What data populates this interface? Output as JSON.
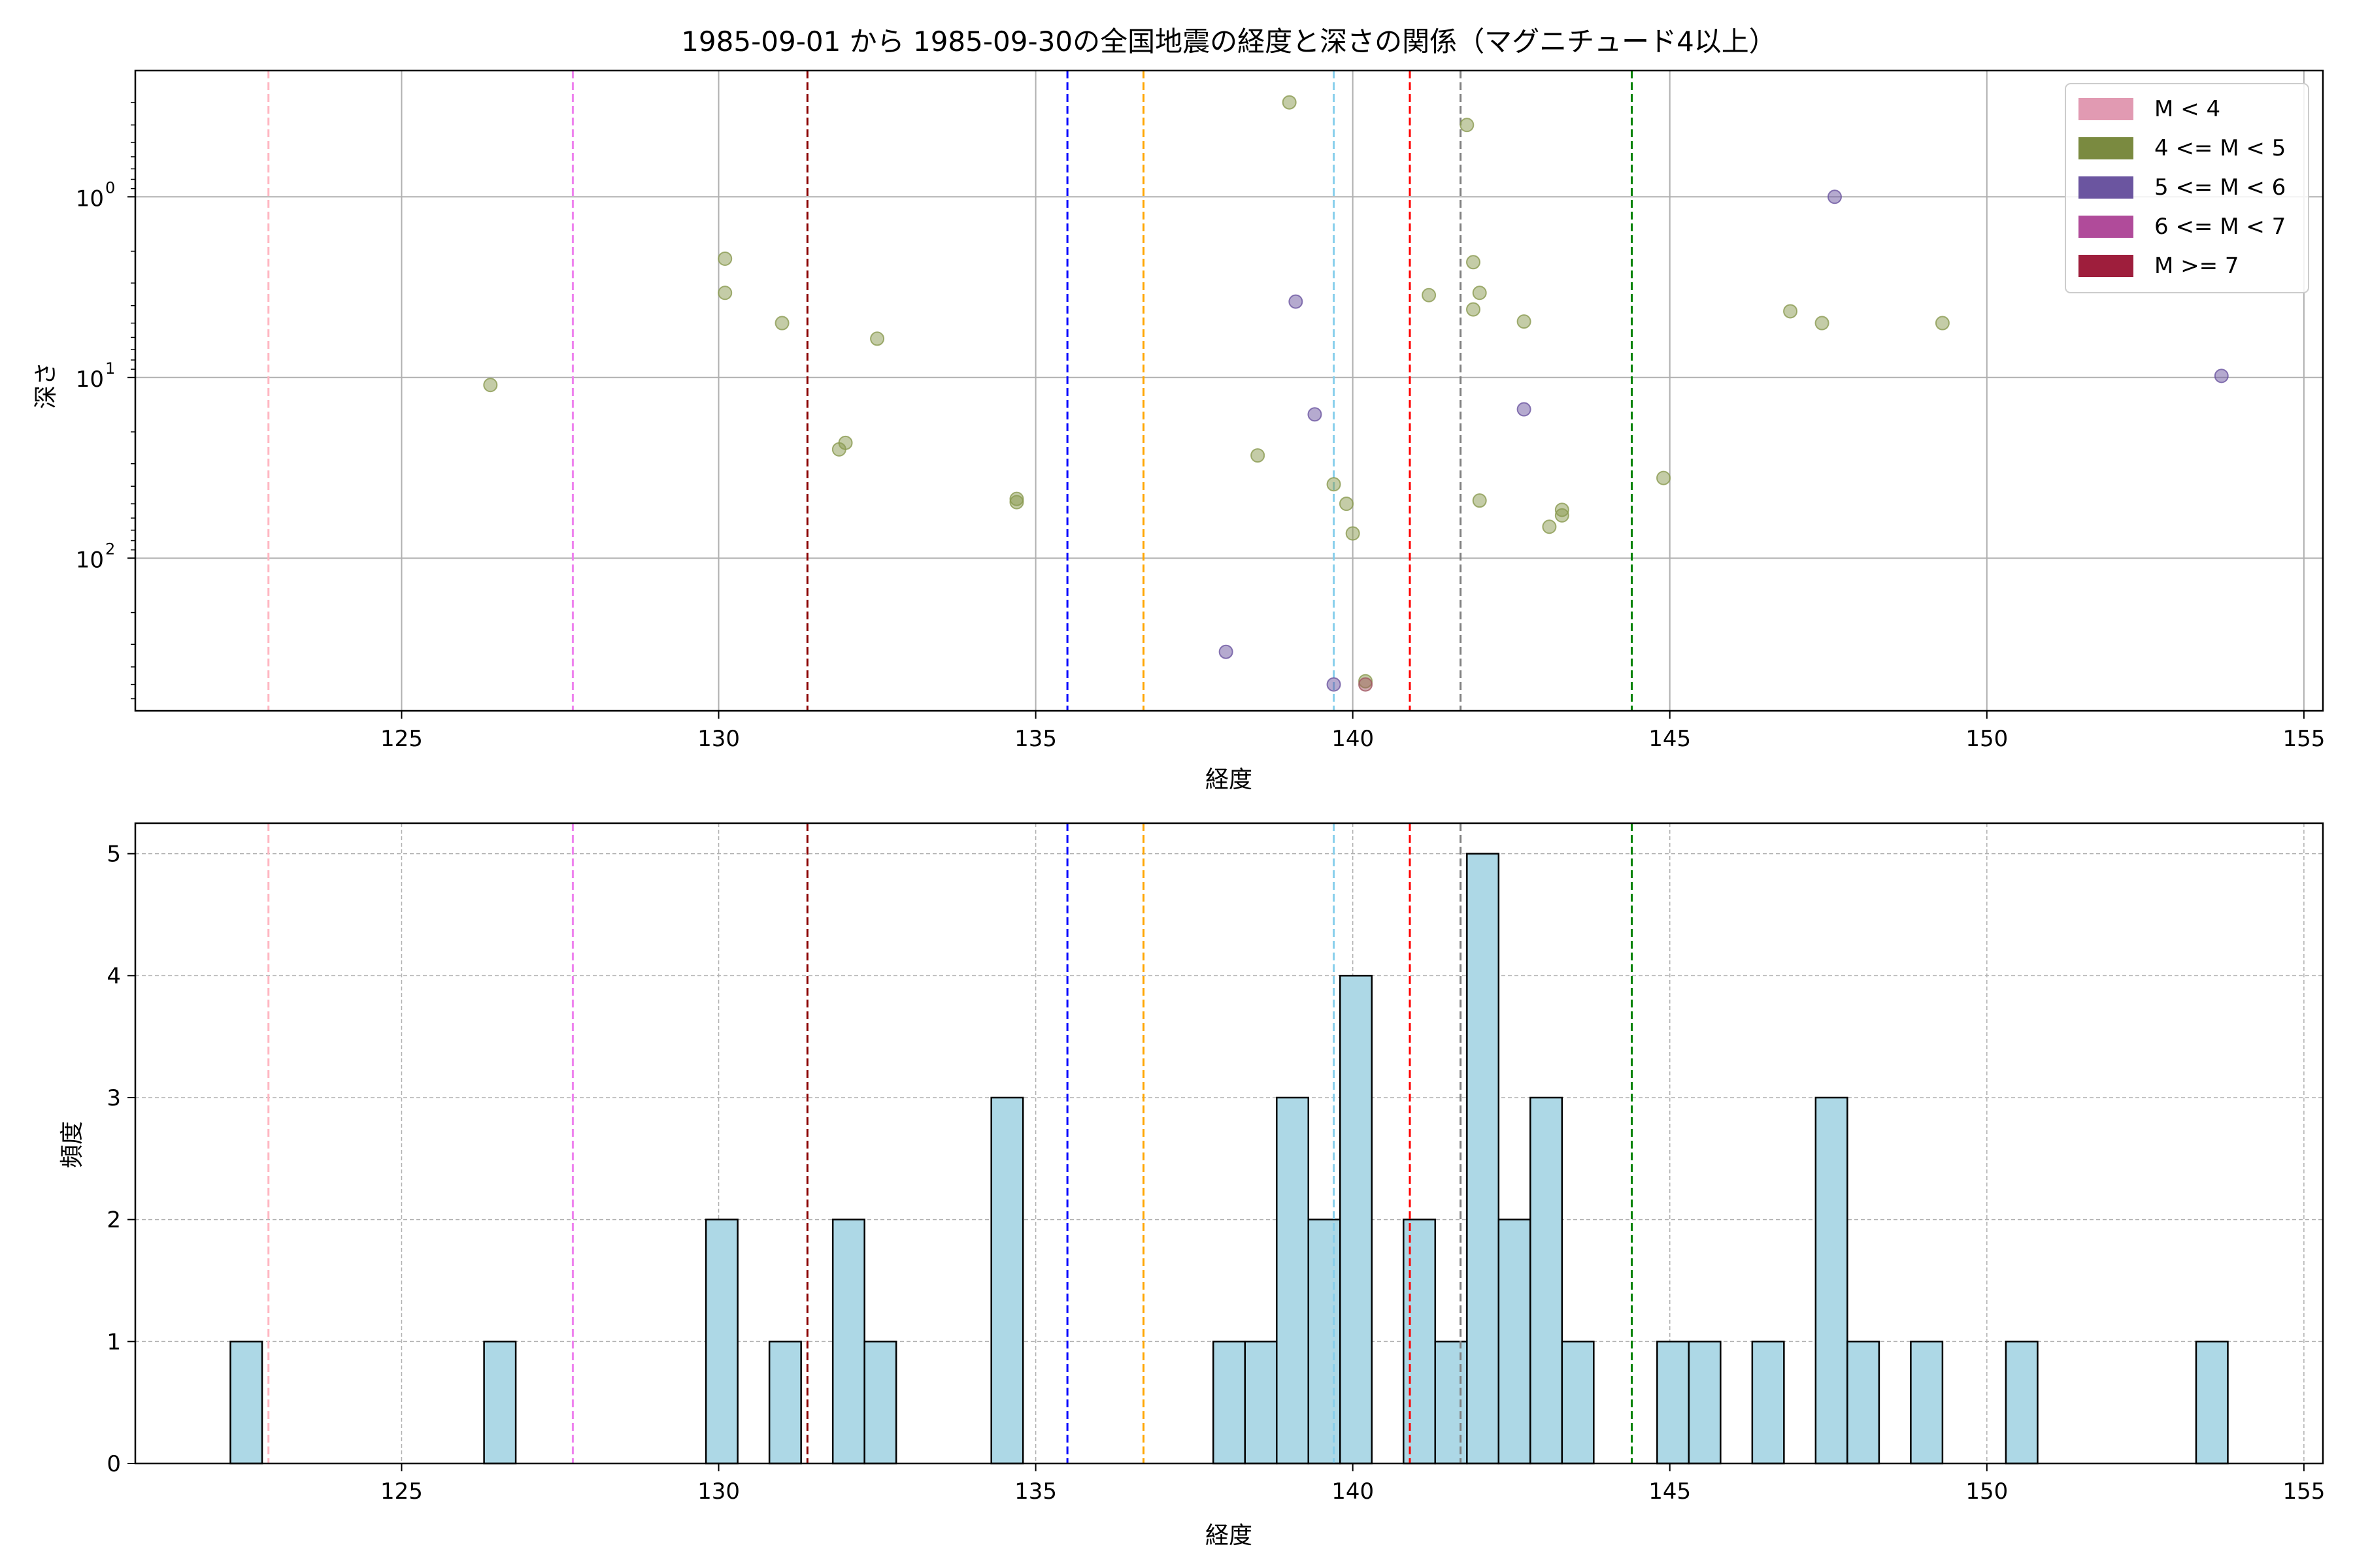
{
  "chart_data": [
    {
      "type": "scatter",
      "title": "1985-09-01 から 1985-09-30の全国地震の経度と深さの関係（マグニチュード4以上）",
      "xlabel": "経度",
      "ylabel": "深さ",
      "xlim": [
        120.8,
        155.3
      ],
      "ylim": [
        700,
        0.2
      ],
      "y_scale": "log",
      "y_inverted": true,
      "grid": true,
      "x_ticks": [
        125,
        130,
        135,
        140,
        145,
        150,
        155
      ],
      "x_tick_labels": [
        "125",
        "130",
        "135",
        "140",
        "145",
        "150",
        "155"
      ],
      "y_ticks": [
        1,
        10,
        100
      ],
      "y_tick_labels": [
        "10",
        "10",
        "10"
      ],
      "y_tick_exponents": [
        "0",
        "1",
        "2"
      ],
      "legend": {
        "position": "top-right",
        "entries": [
          {
            "label": "M < 4",
            "color": "#e19ab2"
          },
          {
            "label": "4 <= M < 5",
            "color": "#7a8a40"
          },
          {
            "label": "5 <= M < 6",
            "color": "#6b55a0"
          },
          {
            "label": "6 <= M < 7",
            "color": "#b04b9a"
          },
          {
            "label": "M >= 7",
            "color": "#9e1e3c"
          }
        ]
      },
      "vlines": [
        {
          "x": 122.9,
          "color": "#ffb6c1"
        },
        {
          "x": 127.7,
          "color": "#ee82ee"
        },
        {
          "x": 131.4,
          "color": "#8b0000"
        },
        {
          "x": 135.5,
          "color": "#0000ff"
        },
        {
          "x": 136.7,
          "color": "#ffa500"
        },
        {
          "x": 139.7,
          "color": "#87ceeb"
        },
        {
          "x": 140.9,
          "color": "#ff0000"
        },
        {
          "x": 141.7,
          "color": "#808080"
        },
        {
          "x": 144.4,
          "color": "#008000"
        }
      ],
      "series": [
        {
          "category": "4 <= M < 5",
          "color": "#8a9a50",
          "points": [
            {
              "x": 139.0,
              "y": 0.3
            },
            {
              "x": 141.8,
              "y": 0.4
            },
            {
              "x": 130.1,
              "y": 2.2
            },
            {
              "x": 130.1,
              "y": 3.4
            },
            {
              "x": 131.0,
              "y": 5.0
            },
            {
              "x": 132.5,
              "y": 6.1
            },
            {
              "x": 126.4,
              "y": 11
            },
            {
              "x": 132.0,
              "y": 23
            },
            {
              "x": 131.9,
              "y": 25
            },
            {
              "x": 134.7,
              "y": 47
            },
            {
              "x": 134.7,
              "y": 49
            },
            {
              "x": 138.5,
              "y": 27
            },
            {
              "x": 139.7,
              "y": 39
            },
            {
              "x": 139.9,
              "y": 50
            },
            {
              "x": 140.0,
              "y": 73
            },
            {
              "x": 140.2,
              "y": 480
            },
            {
              "x": 141.2,
              "y": 3.5
            },
            {
              "x": 141.9,
              "y": 2.3
            },
            {
              "x": 142.0,
              "y": 3.4
            },
            {
              "x": 141.9,
              "y": 4.2
            },
            {
              "x": 142.7,
              "y": 4.9
            },
            {
              "x": 142.0,
              "y": 48
            },
            {
              "x": 143.1,
              "y": 67
            },
            {
              "x": 143.3,
              "y": 58
            },
            {
              "x": 143.3,
              "y": 54
            },
            {
              "x": 144.9,
              "y": 36
            },
            {
              "x": 146.9,
              "y": 4.3
            },
            {
              "x": 147.4,
              "y": 5.0
            },
            {
              "x": 149.3,
              "y": 5.0
            }
          ]
        },
        {
          "category": "5 <= M < 6",
          "color": "#6b55a0",
          "points": [
            {
              "x": 139.1,
              "y": 3.8
            },
            {
              "x": 139.4,
              "y": 16
            },
            {
              "x": 138.0,
              "y": 330
            },
            {
              "x": 139.7,
              "y": 500
            },
            {
              "x": 142.7,
              "y": 15
            },
            {
              "x": 147.6,
              "y": 1.0
            },
            {
              "x": 153.7,
              "y": 9.8
            }
          ]
        },
        {
          "category": "6 <= M < 7",
          "color": "#a05560",
          "points": [
            {
              "x": 140.2,
              "y": 500
            }
          ]
        }
      ]
    },
    {
      "type": "bar",
      "title": "",
      "xlabel": "経度",
      "ylabel": "頻度",
      "xlim": [
        120.8,
        155.3
      ],
      "ylim": [
        0,
        5.25
      ],
      "grid": true,
      "x_ticks": [
        125,
        130,
        135,
        140,
        145,
        150,
        155
      ],
      "x_tick_labels": [
        "125",
        "130",
        "135",
        "140",
        "145",
        "150",
        "155"
      ],
      "y_ticks": [
        0,
        1,
        2,
        3,
        4,
        5
      ],
      "y_tick_labels": [
        "0",
        "1",
        "2",
        "3",
        "4",
        "5"
      ],
      "bar_color": "#add8e6",
      "bin_width": 0.5,
      "vlines": [
        {
          "x": 122.9,
          "color": "#ffb6c1"
        },
        {
          "x": 127.7,
          "color": "#ee82ee"
        },
        {
          "x": 131.4,
          "color": "#8b0000"
        },
        {
          "x": 135.5,
          "color": "#0000ff"
        },
        {
          "x": 136.7,
          "color": "#ffa500"
        },
        {
          "x": 139.7,
          "color": "#87ceeb"
        },
        {
          "x": 140.9,
          "color": "#ff0000"
        },
        {
          "x": 141.7,
          "color": "#808080"
        },
        {
          "x": 144.4,
          "color": "#008000"
        }
      ],
      "bins": [
        {
          "x": 122.3,
          "count": 1
        },
        {
          "x": 126.3,
          "count": 1
        },
        {
          "x": 129.8,
          "count": 2
        },
        {
          "x": 130.8,
          "count": 1
        },
        {
          "x": 131.8,
          "count": 2
        },
        {
          "x": 132.3,
          "count": 1
        },
        {
          "x": 134.3,
          "count": 3
        },
        {
          "x": 137.8,
          "count": 1
        },
        {
          "x": 138.3,
          "count": 1
        },
        {
          "x": 138.8,
          "count": 3
        },
        {
          "x": 139.3,
          "count": 2
        },
        {
          "x": 139.8,
          "count": 4
        },
        {
          "x": 140.8,
          "count": 2
        },
        {
          "x": 141.3,
          "count": 1
        },
        {
          "x": 141.8,
          "count": 5
        },
        {
          "x": 142.3,
          "count": 2
        },
        {
          "x": 142.8,
          "count": 3
        },
        {
          "x": 143.3,
          "count": 1
        },
        {
          "x": 144.8,
          "count": 1
        },
        {
          "x": 145.3,
          "count": 1
        },
        {
          "x": 146.3,
          "count": 1
        },
        {
          "x": 147.3,
          "count": 3
        },
        {
          "x": 147.8,
          "count": 1
        },
        {
          "x": 148.8,
          "count": 1
        },
        {
          "x": 150.3,
          "count": 1
        },
        {
          "x": 153.3,
          "count": 1
        }
      ]
    }
  ]
}
